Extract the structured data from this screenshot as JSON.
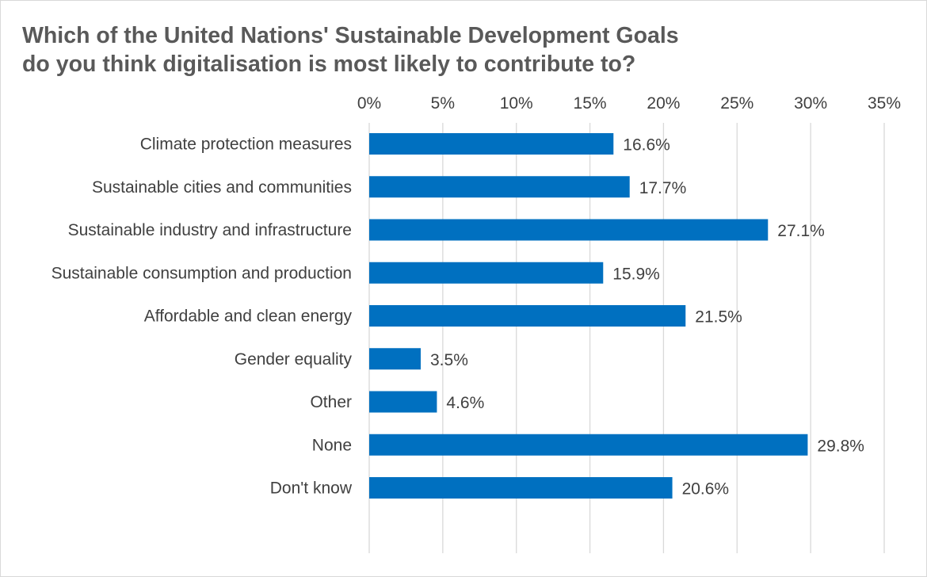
{
  "chart_data": {
    "type": "bar",
    "orientation": "horizontal",
    "title": [
      "Which of the United Nations' Sustainable Development Goals",
      "do you think digitalisation is most likely to contribute to?"
    ],
    "categories": [
      "Climate protection measures",
      "Sustainable cities and communities",
      "Sustainable industry and infrastructure",
      "Sustainable consumption and production",
      "Affordable and clean energy",
      "Gender equality",
      "Other",
      "None",
      "Don't know"
    ],
    "values": [
      16.6,
      17.7,
      27.1,
      15.9,
      21.5,
      3.5,
      4.6,
      29.8,
      20.6
    ],
    "data_labels": [
      "16.6%",
      "17.7%",
      "27.1%",
      "15.9%",
      "21.5%",
      "3.5%",
      "4.6%",
      "29.8%",
      "20.6%"
    ],
    "xlim": [
      0,
      35
    ],
    "x_ticks": [
      0,
      5,
      10,
      15,
      20,
      25,
      30,
      35
    ],
    "x_tick_labels": [
      "0%",
      "5%",
      "10%",
      "15%",
      "20%",
      "25%",
      "30%",
      "35%"
    ],
    "x_axis_position": "top",
    "grid": true,
    "legend": "none",
    "bar_color": "#0070C0",
    "grid_color": "#D9D9D9",
    "text_color": "#404040",
    "title_color": "#595959"
  }
}
